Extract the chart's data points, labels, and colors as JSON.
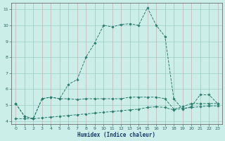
{
  "x": [
    0,
    1,
    2,
    3,
    4,
    5,
    6,
    7,
    8,
    9,
    10,
    11,
    12,
    13,
    14,
    15,
    16,
    17,
    18,
    19,
    20,
    21,
    22,
    23
  ],
  "line1": [
    5.1,
    4.3,
    4.15,
    5.4,
    5.5,
    5.4,
    5.4,
    5.35,
    5.4,
    5.4,
    5.4,
    5.4,
    5.4,
    5.5,
    5.5,
    5.5,
    5.5,
    5.4,
    4.75,
    4.9,
    5.1,
    5.1,
    5.1,
    5.1
  ],
  "line2": [
    4.15,
    4.15,
    4.15,
    4.2,
    4.25,
    4.3,
    4.35,
    4.4,
    4.45,
    4.5,
    4.55,
    4.6,
    4.65,
    4.7,
    4.75,
    4.85,
    4.9,
    4.85,
    4.7,
    4.8,
    4.85,
    4.9,
    4.95,
    4.95
  ],
  "line3": [
    5.1,
    4.3,
    4.15,
    5.4,
    5.5,
    5.4,
    6.3,
    6.6,
    8.0,
    8.9,
    10.0,
    9.9,
    10.05,
    10.1,
    10.0,
    11.1,
    10.0,
    9.3,
    5.4,
    4.75,
    4.9,
    5.65,
    5.65,
    5.1
  ],
  "line_color": "#2d7d6e",
  "bg_color": "#cceee8",
  "xlabel": "Humidex (Indice chaleur)",
  "ylim": [
    3.8,
    11.4
  ],
  "xlim": [
    -0.5,
    23.5
  ],
  "yticks": [
    4,
    5,
    6,
    7,
    8,
    9,
    10,
    11
  ],
  "xticks": [
    0,
    1,
    2,
    3,
    4,
    5,
    6,
    7,
    8,
    9,
    10,
    11,
    12,
    13,
    14,
    15,
    16,
    17,
    18,
    19,
    20,
    21,
    22,
    23
  ]
}
